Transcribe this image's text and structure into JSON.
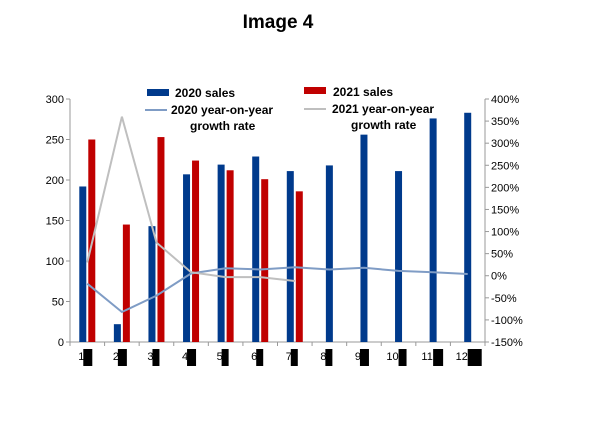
{
  "title": "Image 4",
  "chart_data": {
    "type": "bar",
    "title": "Image 4",
    "categories": [
      "1",
      "2",
      "3",
      "4",
      "5",
      "6",
      "7",
      "8",
      "9",
      "10",
      "11",
      "12"
    ],
    "y_left": {
      "ylim": [
        0,
        300
      ],
      "ticks": [
        "0",
        "50",
        "100",
        "150",
        "200",
        "250",
        "300"
      ]
    },
    "y_right": {
      "ylim": [
        -150,
        400
      ],
      "ticks": [
        "-150%",
        "-100%",
        "-50%",
        "0%",
        "50%",
        "100%",
        "150%",
        "200%",
        "250%",
        "300%",
        "350%",
        "400%"
      ]
    },
    "series": [
      {
        "name": "2020 sales",
        "type": "bar",
        "axis": "left",
        "color": "#003a8c",
        "values": [
          192,
          22,
          143,
          207,
          219,
          229,
          211,
          218,
          256,
          211,
          276,
          283
        ]
      },
      {
        "name": "2021 sales",
        "type": "bar",
        "axis": "left",
        "color": "#c00000",
        "values": [
          250,
          145,
          253,
          224,
          212,
          201,
          186,
          null,
          null,
          null,
          null,
          null
        ]
      },
      {
        "name": "2020 year-on-year growth rate",
        "type": "line",
        "axis": "right",
        "color": "#7f9cc5",
        "values": [
          -18,
          -82,
          -45,
          5,
          17,
          14,
          19,
          14,
          18,
          11,
          8,
          4
        ]
      },
      {
        "name": "2021 year-on-year growth rate",
        "type": "line",
        "axis": "right",
        "color": "#bfbfbf",
        "values": [
          30,
          360,
          75,
          8,
          -3,
          -3,
          -12,
          null,
          null,
          null,
          null,
          null
        ]
      }
    ],
    "legend": [
      {
        "label": "2020 sales",
        "line1": "2020 sales",
        "line2": ""
      },
      {
        "label": "2021 sales",
        "line1": "2021 sales",
        "line2": ""
      },
      {
        "label": "2020 year-on-year growth rate",
        "line1": "2020 year-on-year",
        "line2": "growth rate"
      },
      {
        "label": "2021 year-on-year growth rate",
        "line1": "2021 year-on-year",
        "line2": "growth rate"
      }
    ],
    "legend_position": "top",
    "grid": false
  }
}
